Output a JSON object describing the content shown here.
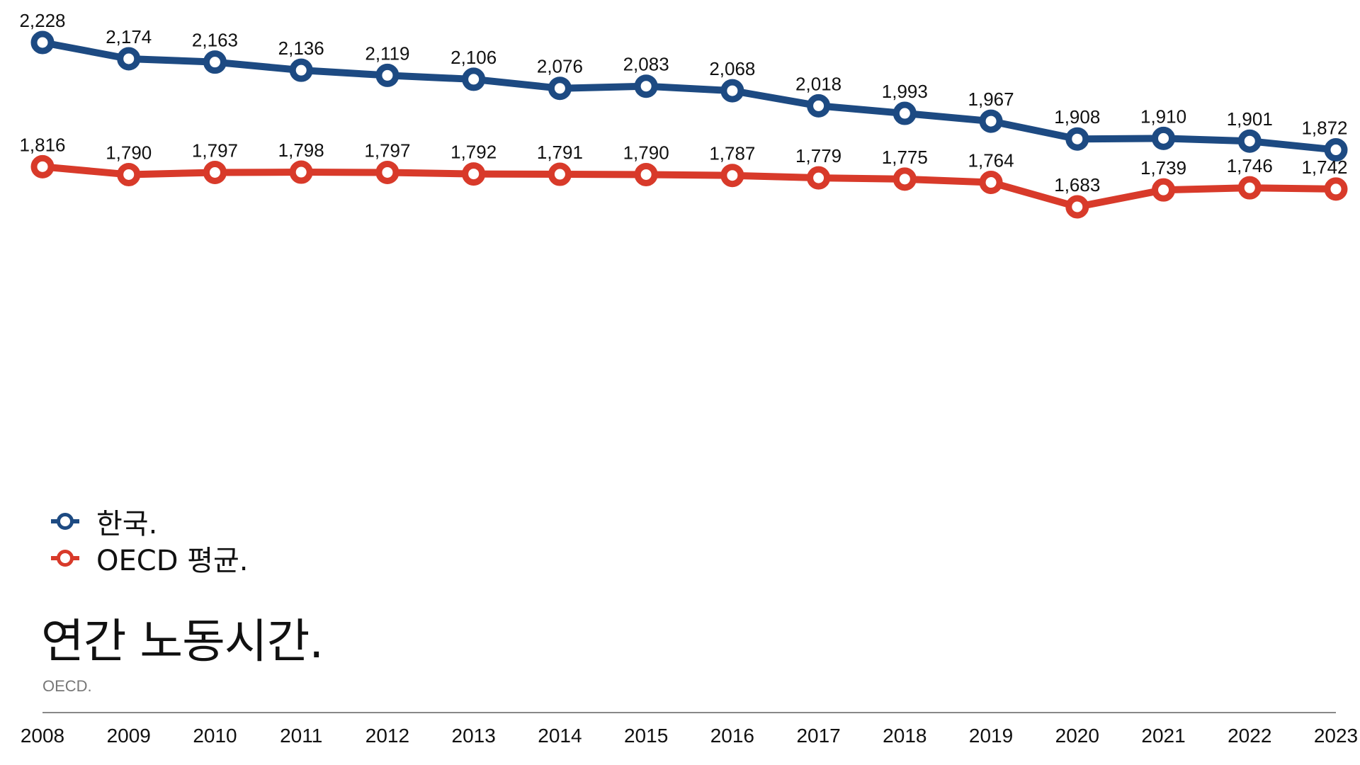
{
  "chart_data": {
    "type": "line",
    "title": "연간 노동시간.",
    "source": "OECD.",
    "x": [
      "2008",
      "2009",
      "2010",
      "2011",
      "2012",
      "2013",
      "2014",
      "2015",
      "2016",
      "2017",
      "2018",
      "2019",
      "2020",
      "2021",
      "2022",
      "2023"
    ],
    "ylim": [
      1683,
      2228
    ],
    "grid": false,
    "legend_position": "bottom-left",
    "series": [
      {
        "name": "한국.",
        "color": "#1d4a82",
        "values": [
          2228,
          2174,
          2163,
          2136,
          2119,
          2106,
          2076,
          2083,
          2068,
          2018,
          1993,
          1967,
          1908,
          1910,
          1901,
          1872
        ],
        "labels": [
          "2,228",
          "2,174",
          "2,163",
          "2,136",
          "2,119",
          "2,106",
          "2,076",
          "2,083",
          "2,068",
          "2,018",
          "1,993",
          "1,967",
          "1,908",
          "1,910",
          "1,901",
          "1,872"
        ]
      },
      {
        "name": "OECD 평균.",
        "color": "#d83a2a",
        "values": [
          1816,
          1790,
          1797,
          1798,
          1797,
          1792,
          1791,
          1790,
          1787,
          1779,
          1775,
          1764,
          1683,
          1739,
          1746,
          1742
        ],
        "labels": [
          "1,816",
          "1,790",
          "1,797",
          "1,798",
          "1,797",
          "1,792",
          "1,791",
          "1,790",
          "1,787",
          "1,779",
          "1,775",
          "1,764",
          "1,683",
          "1,739",
          "1,746",
          "1,742"
        ]
      }
    ]
  }
}
